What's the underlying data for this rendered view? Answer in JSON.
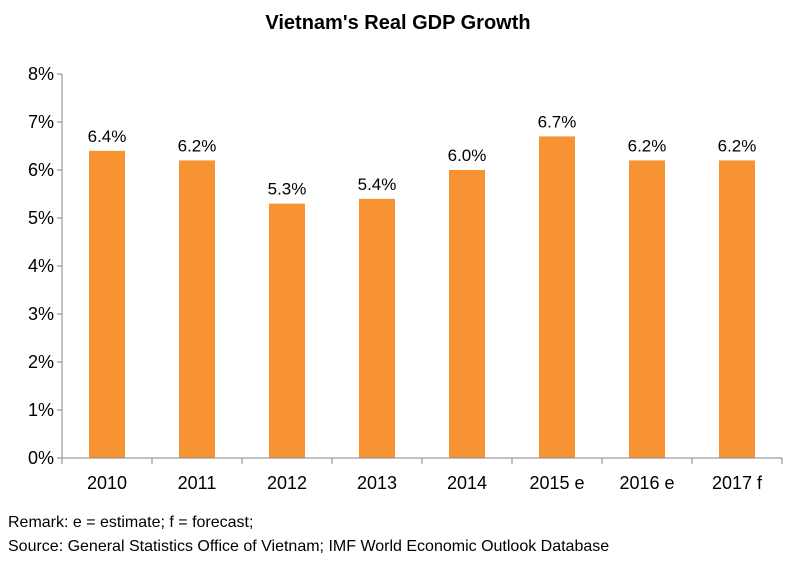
{
  "chart_data": {
    "type": "bar",
    "title": "Vietnam's Real GDP Growth",
    "categories": [
      "2010",
      "2011",
      "2012",
      "2013",
      "2014",
      "2015 e",
      "2016 e",
      "2017 f"
    ],
    "values": [
      6.4,
      6.2,
      5.3,
      5.4,
      6.0,
      6.7,
      6.2,
      6.2
    ],
    "data_labels": [
      "6.4%",
      "6.2%",
      "5.3%",
      "5.4%",
      "6.0%",
      "6.7%",
      "6.2%",
      "6.2%"
    ],
    "ylim": [
      0,
      8
    ],
    "yticks": [
      "0%",
      "1%",
      "2%",
      "3%",
      "4%",
      "5%",
      "6%",
      "7%",
      "8%"
    ],
    "xlabel": "",
    "ylabel": "",
    "grid": false,
    "bar_color": "#F79332",
    "axis_color": "#868686"
  },
  "notes": {
    "remark": "Remark: e = estimate; f = forecast;",
    "source": "Source: General Statistics Office of Vietnam; IMF World Economic Outlook Database"
  }
}
